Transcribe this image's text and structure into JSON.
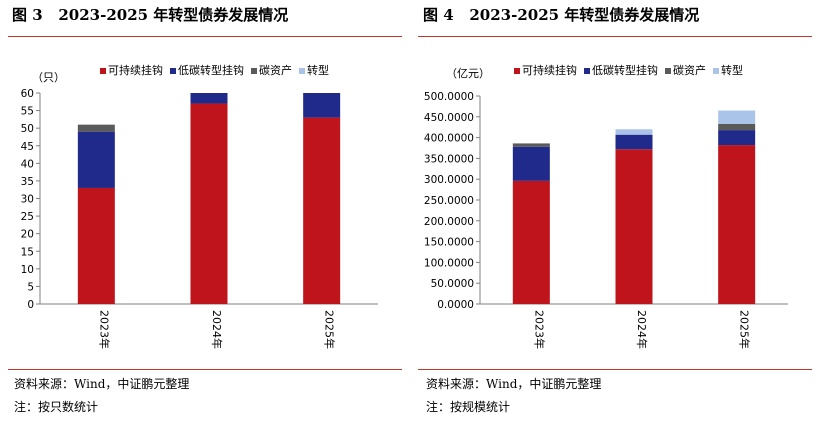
{
  "left": {
    "fig_label": "图 3",
    "fig_title": "2023-2025 年转型债券发展情况",
    "source": "资料来源：Wind，中证鹏元整理",
    "note": "注：按只数统计"
  },
  "right": {
    "fig_label": "图 4",
    "fig_title": "2023-2025 年转型债券发展情况",
    "source": "资料来源：Wind，中证鹏元整理",
    "note": "注：按规模统计"
  },
  "colors": {
    "可持续挂钩": "#c0141c",
    "低碳转型挂钩": "#1f2a8a",
    "碳资产": "#5a5a5a",
    "转型": "#a9c4e8",
    "rule": "#c0392b"
  },
  "chart_data": [
    {
      "type": "bar",
      "stacked": true,
      "unit_label": "（只）",
      "categories": [
        "2023年",
        "2024年",
        "2025年"
      ],
      "series": [
        {
          "name": "可持续挂钩",
          "values": [
            33,
            57,
            53
          ]
        },
        {
          "name": "低碳转型挂钩",
          "values": [
            16,
            3,
            7
          ]
        },
        {
          "name": "碳资产",
          "values": [
            2,
            0,
            0
          ]
        },
        {
          "name": "转型",
          "values": [
            0,
            0,
            0
          ]
        }
      ],
      "ylim": [
        0,
        60
      ],
      "yticks": [
        "0",
        "5",
        "10",
        "15",
        "20",
        "25",
        "30",
        "35",
        "40",
        "45",
        "50",
        "55",
        "60"
      ],
      "grid": false,
      "legend": "top"
    },
    {
      "type": "bar",
      "stacked": true,
      "unit_label": "（亿元）",
      "categories": [
        "2023年",
        "2024年",
        "2025年"
      ],
      "series": [
        {
          "name": "可持续挂钩",
          "values": [
            296,
            372,
            382
          ]
        },
        {
          "name": "低碳转型挂钩",
          "values": [
            82,
            35,
            36
          ]
        },
        {
          "name": "碳资产",
          "values": [
            8,
            0,
            15
          ]
        },
        {
          "name": "转型",
          "values": [
            0,
            13,
            32
          ]
        }
      ],
      "ylim": [
        0,
        500
      ],
      "yticks": [
        "0.0000",
        "50.0000",
        "100.0000",
        "150.0000",
        "200.0000",
        "250.0000",
        "300.0000",
        "350.0000",
        "400.0000",
        "450.0000",
        "500.0000"
      ],
      "grid": false,
      "legend": "top"
    }
  ]
}
